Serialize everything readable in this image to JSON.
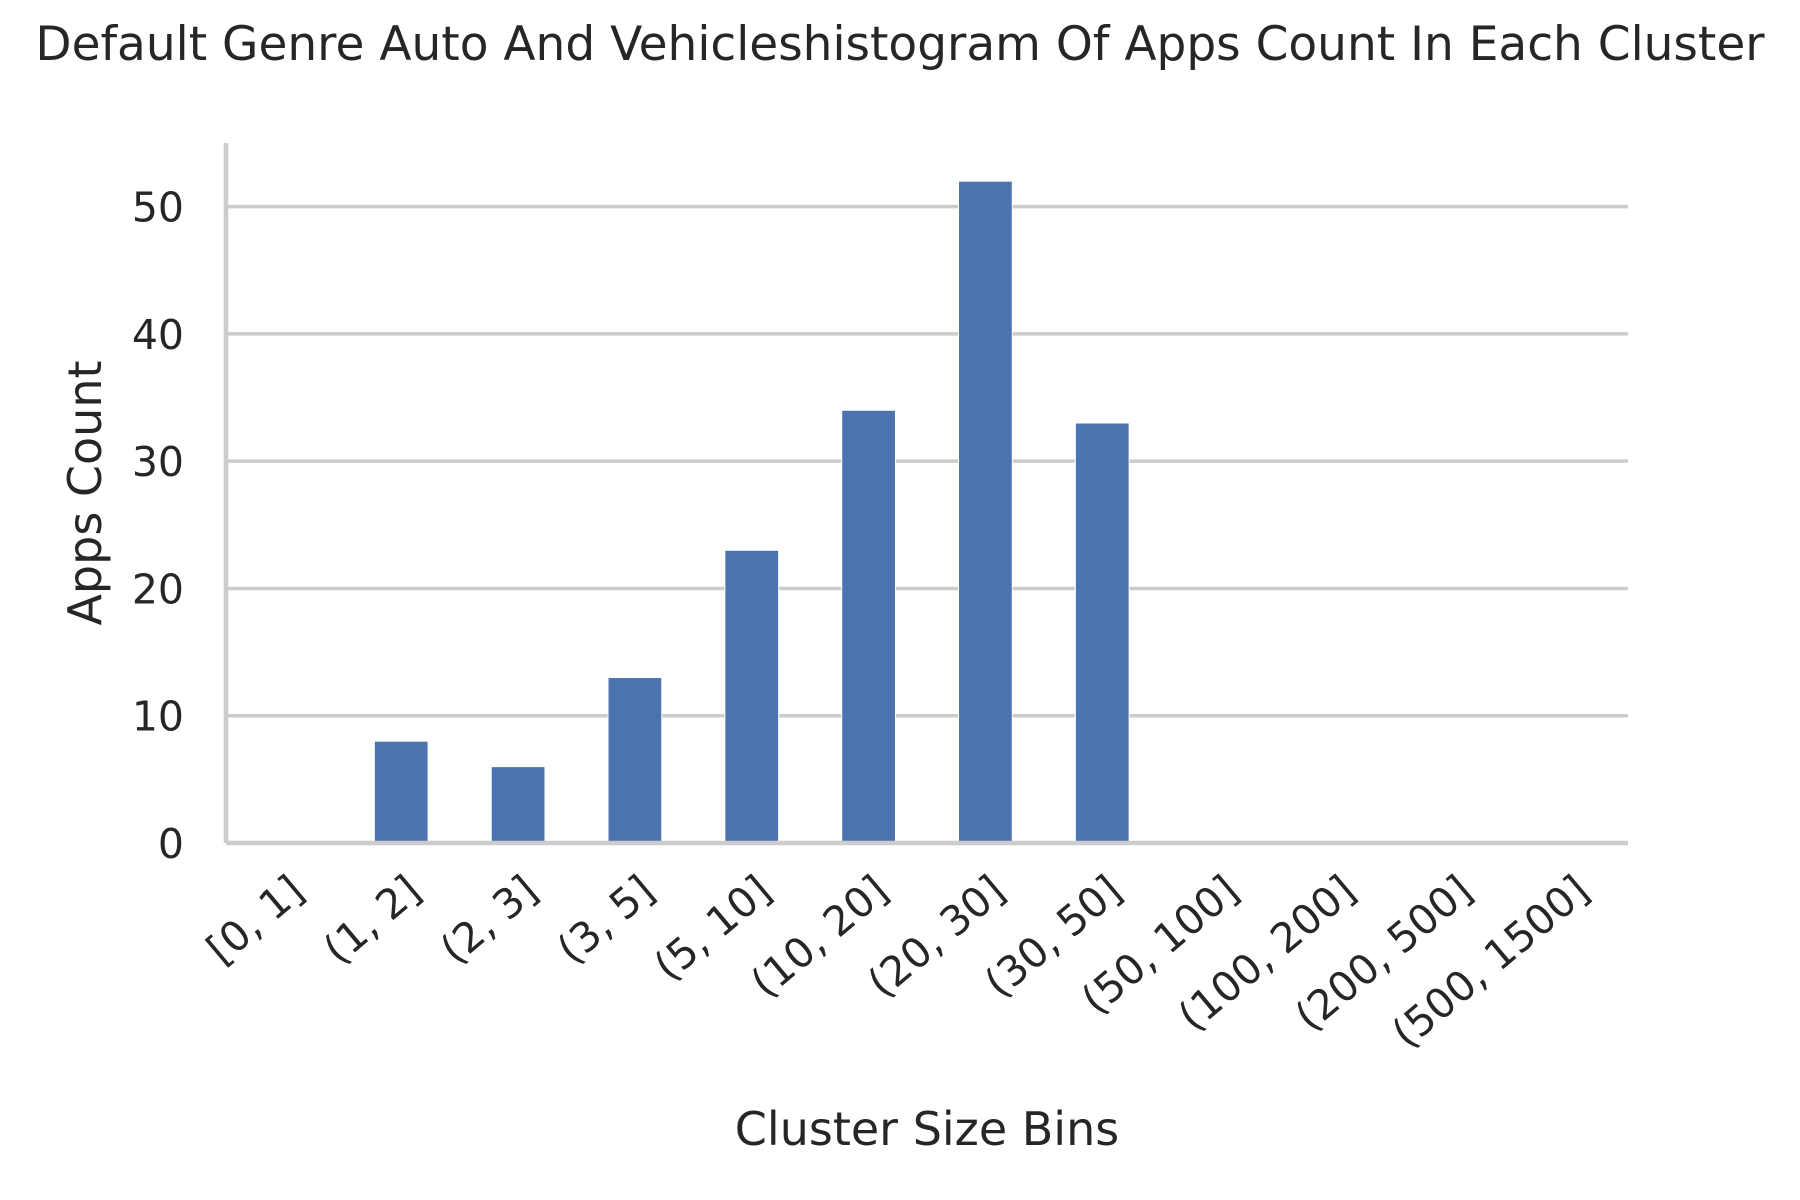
{
  "chart_data": {
    "type": "bar",
    "title": "Default Genre Auto And Vehicleshistogram Of Apps Count In Each Cluster",
    "xlabel": "Cluster Size Bins",
    "ylabel": "Apps Count",
    "categories": [
      "[0, 1]",
      "(1, 2]",
      "(2, 3]",
      "(3, 5]",
      "(5, 10]",
      "(10, 20]",
      "(20, 30]",
      "(30, 50]",
      "(50, 100]",
      "(100, 200]",
      "(200, 500]",
      "(500, 1500]"
    ],
    "values": [
      0,
      8,
      6,
      13,
      23,
      34,
      52,
      33,
      0,
      0,
      0,
      0
    ],
    "yticks": [
      0,
      10,
      20,
      30,
      40,
      50
    ],
    "ylim": [
      0,
      55
    ],
    "grid": "horizontal",
    "bar_color": "#4c72b0",
    "grid_color": "#cccccc",
    "text_color": "#262626"
  }
}
